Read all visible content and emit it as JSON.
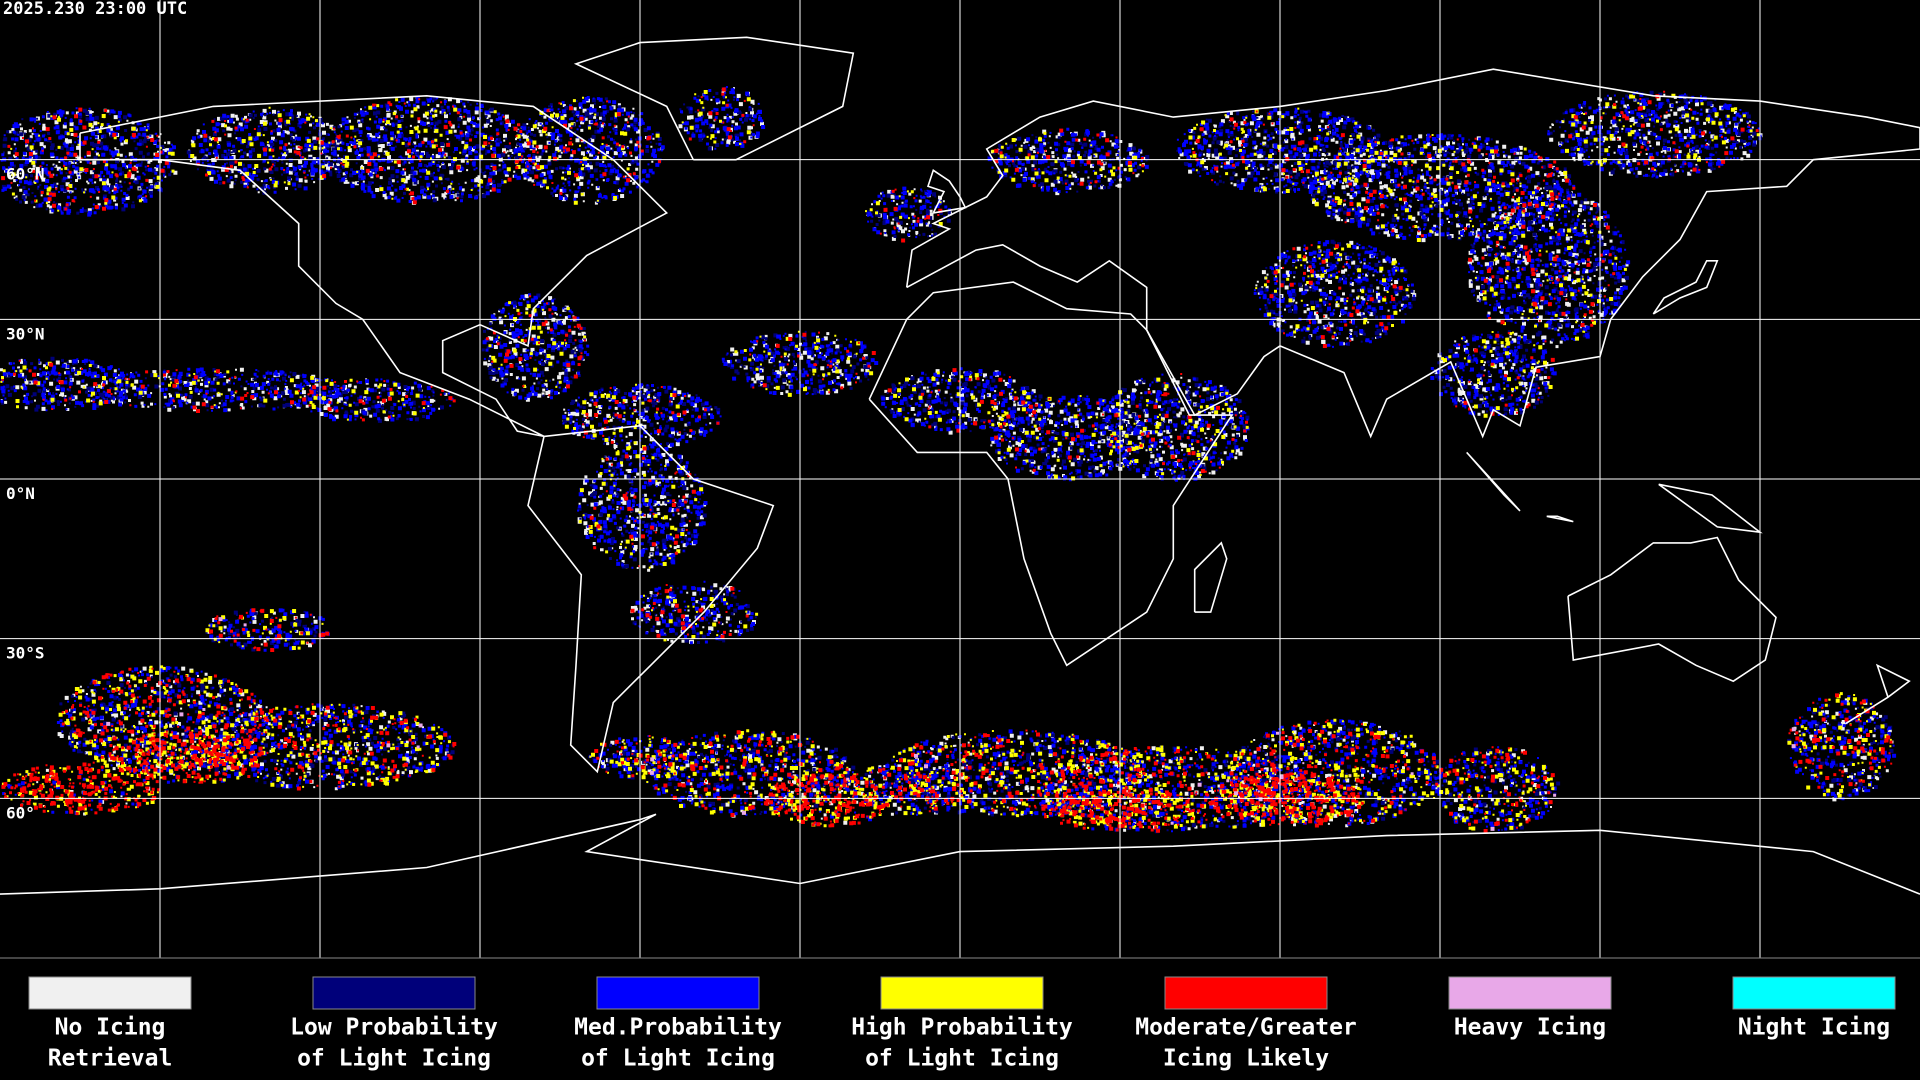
{
  "header": {
    "timestamp": "2025.230 23:00 UTC"
  },
  "latitude_labels": [
    "60°N",
    "30°N",
    "0°N",
    "30°S",
    "60°"
  ],
  "legend": [
    {
      "lines": [
        "No Icing",
        "Retrieval"
      ],
      "color": "#f0f0f0"
    },
    {
      "lines": [
        "Low Probability",
        "of Light Icing"
      ],
      "color": "#00007a"
    },
    {
      "lines": [
        "Med.Probability",
        "of Light Icing"
      ],
      "color": "#0000ff"
    },
    {
      "lines": [
        "High Probability",
        "of Light Icing"
      ],
      "color": "#ffff00"
    },
    {
      "lines": [
        "Moderate/Greater",
        "Icing Likely"
      ],
      "color": "#ff0000"
    },
    {
      "lines": [
        "Heavy Icing"
      ],
      "color": "#e8a8e8"
    },
    {
      "lines": [
        "Night Icing"
      ],
      "color": "#00ffff"
    }
  ]
}
